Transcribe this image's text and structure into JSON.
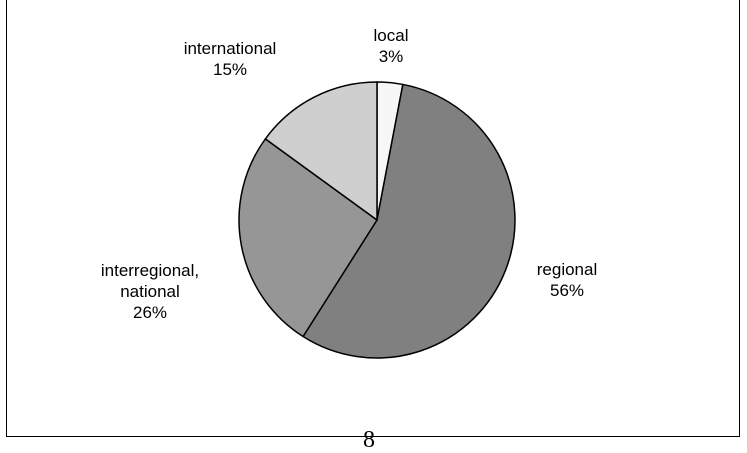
{
  "chart_data": {
    "type": "pie",
    "title": "",
    "start_angle_deg": 0,
    "direction": "clockwise",
    "slices": [
      {
        "label_lines": [
          "local"
        ],
        "value": 3,
        "value_label": "3%",
        "color": "#f7f7f7"
      },
      {
        "label_lines": [
          "regional"
        ],
        "value": 56,
        "value_label": "56%",
        "color": "#808080"
      },
      {
        "label_lines": [
          "interregional,",
          "national"
        ],
        "value": 26,
        "value_label": "26%",
        "color": "#969696"
      },
      {
        "label_lines": [
          "international"
        ],
        "value": 15,
        "value_label": "15%",
        "color": "#cfcfcf"
      }
    ],
    "legend": "none"
  },
  "page": {
    "number": "8"
  }
}
